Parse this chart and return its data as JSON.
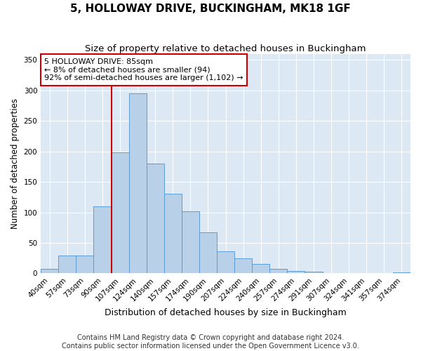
{
  "title": "5, HOLLOWAY DRIVE, BUCKINGHAM, MK18 1GF",
  "subtitle": "Size of property relative to detached houses in Buckingham",
  "xlabel": "Distribution of detached houses by size in Buckingham",
  "ylabel": "Number of detached properties",
  "categories": [
    "40sqm",
    "57sqm",
    "73sqm",
    "90sqm",
    "107sqm",
    "124sqm",
    "140sqm",
    "157sqm",
    "174sqm",
    "190sqm",
    "207sqm",
    "224sqm",
    "240sqm",
    "257sqm",
    "274sqm",
    "291sqm",
    "307sqm",
    "324sqm",
    "341sqm",
    "357sqm",
    "374sqm"
  ],
  "bar_heights": [
    7,
    29,
    29,
    110,
    198,
    295,
    180,
    130,
    102,
    67,
    36,
    25,
    16,
    7,
    4,
    3,
    1,
    0,
    1,
    0,
    2
  ],
  "bar_color": "#b8d0e8",
  "bar_edge_color": "#5b9bd5",
  "vline_x_index": 3.5,
  "vline_color": "#cc0000",
  "annotation_text": "5 HOLLOWAY DRIVE: 85sqm\n← 8% of detached houses are smaller (94)\n92% of semi-detached houses are larger (1,102) →",
  "annotation_box_facecolor": "#ffffff",
  "annotation_box_edgecolor": "#cc0000",
  "ylim": [
    0,
    360
  ],
  "yticks": [
    0,
    50,
    100,
    150,
    200,
    250,
    300,
    350
  ],
  "fig_facecolor": "#ffffff",
  "plot_bg_color": "#dce9f5",
  "grid_color": "#ffffff",
  "title_fontsize": 11,
  "subtitle_fontsize": 9.5,
  "xlabel_fontsize": 9,
  "ylabel_fontsize": 8.5,
  "tick_fontsize": 7.5,
  "annotation_fontsize": 8,
  "footer_fontsize": 7,
  "footer_line1": "Contains HM Land Registry data © Crown copyright and database right 2024.",
  "footer_line2": "Contains public sector information licensed under the Open Government Licence v3.0."
}
